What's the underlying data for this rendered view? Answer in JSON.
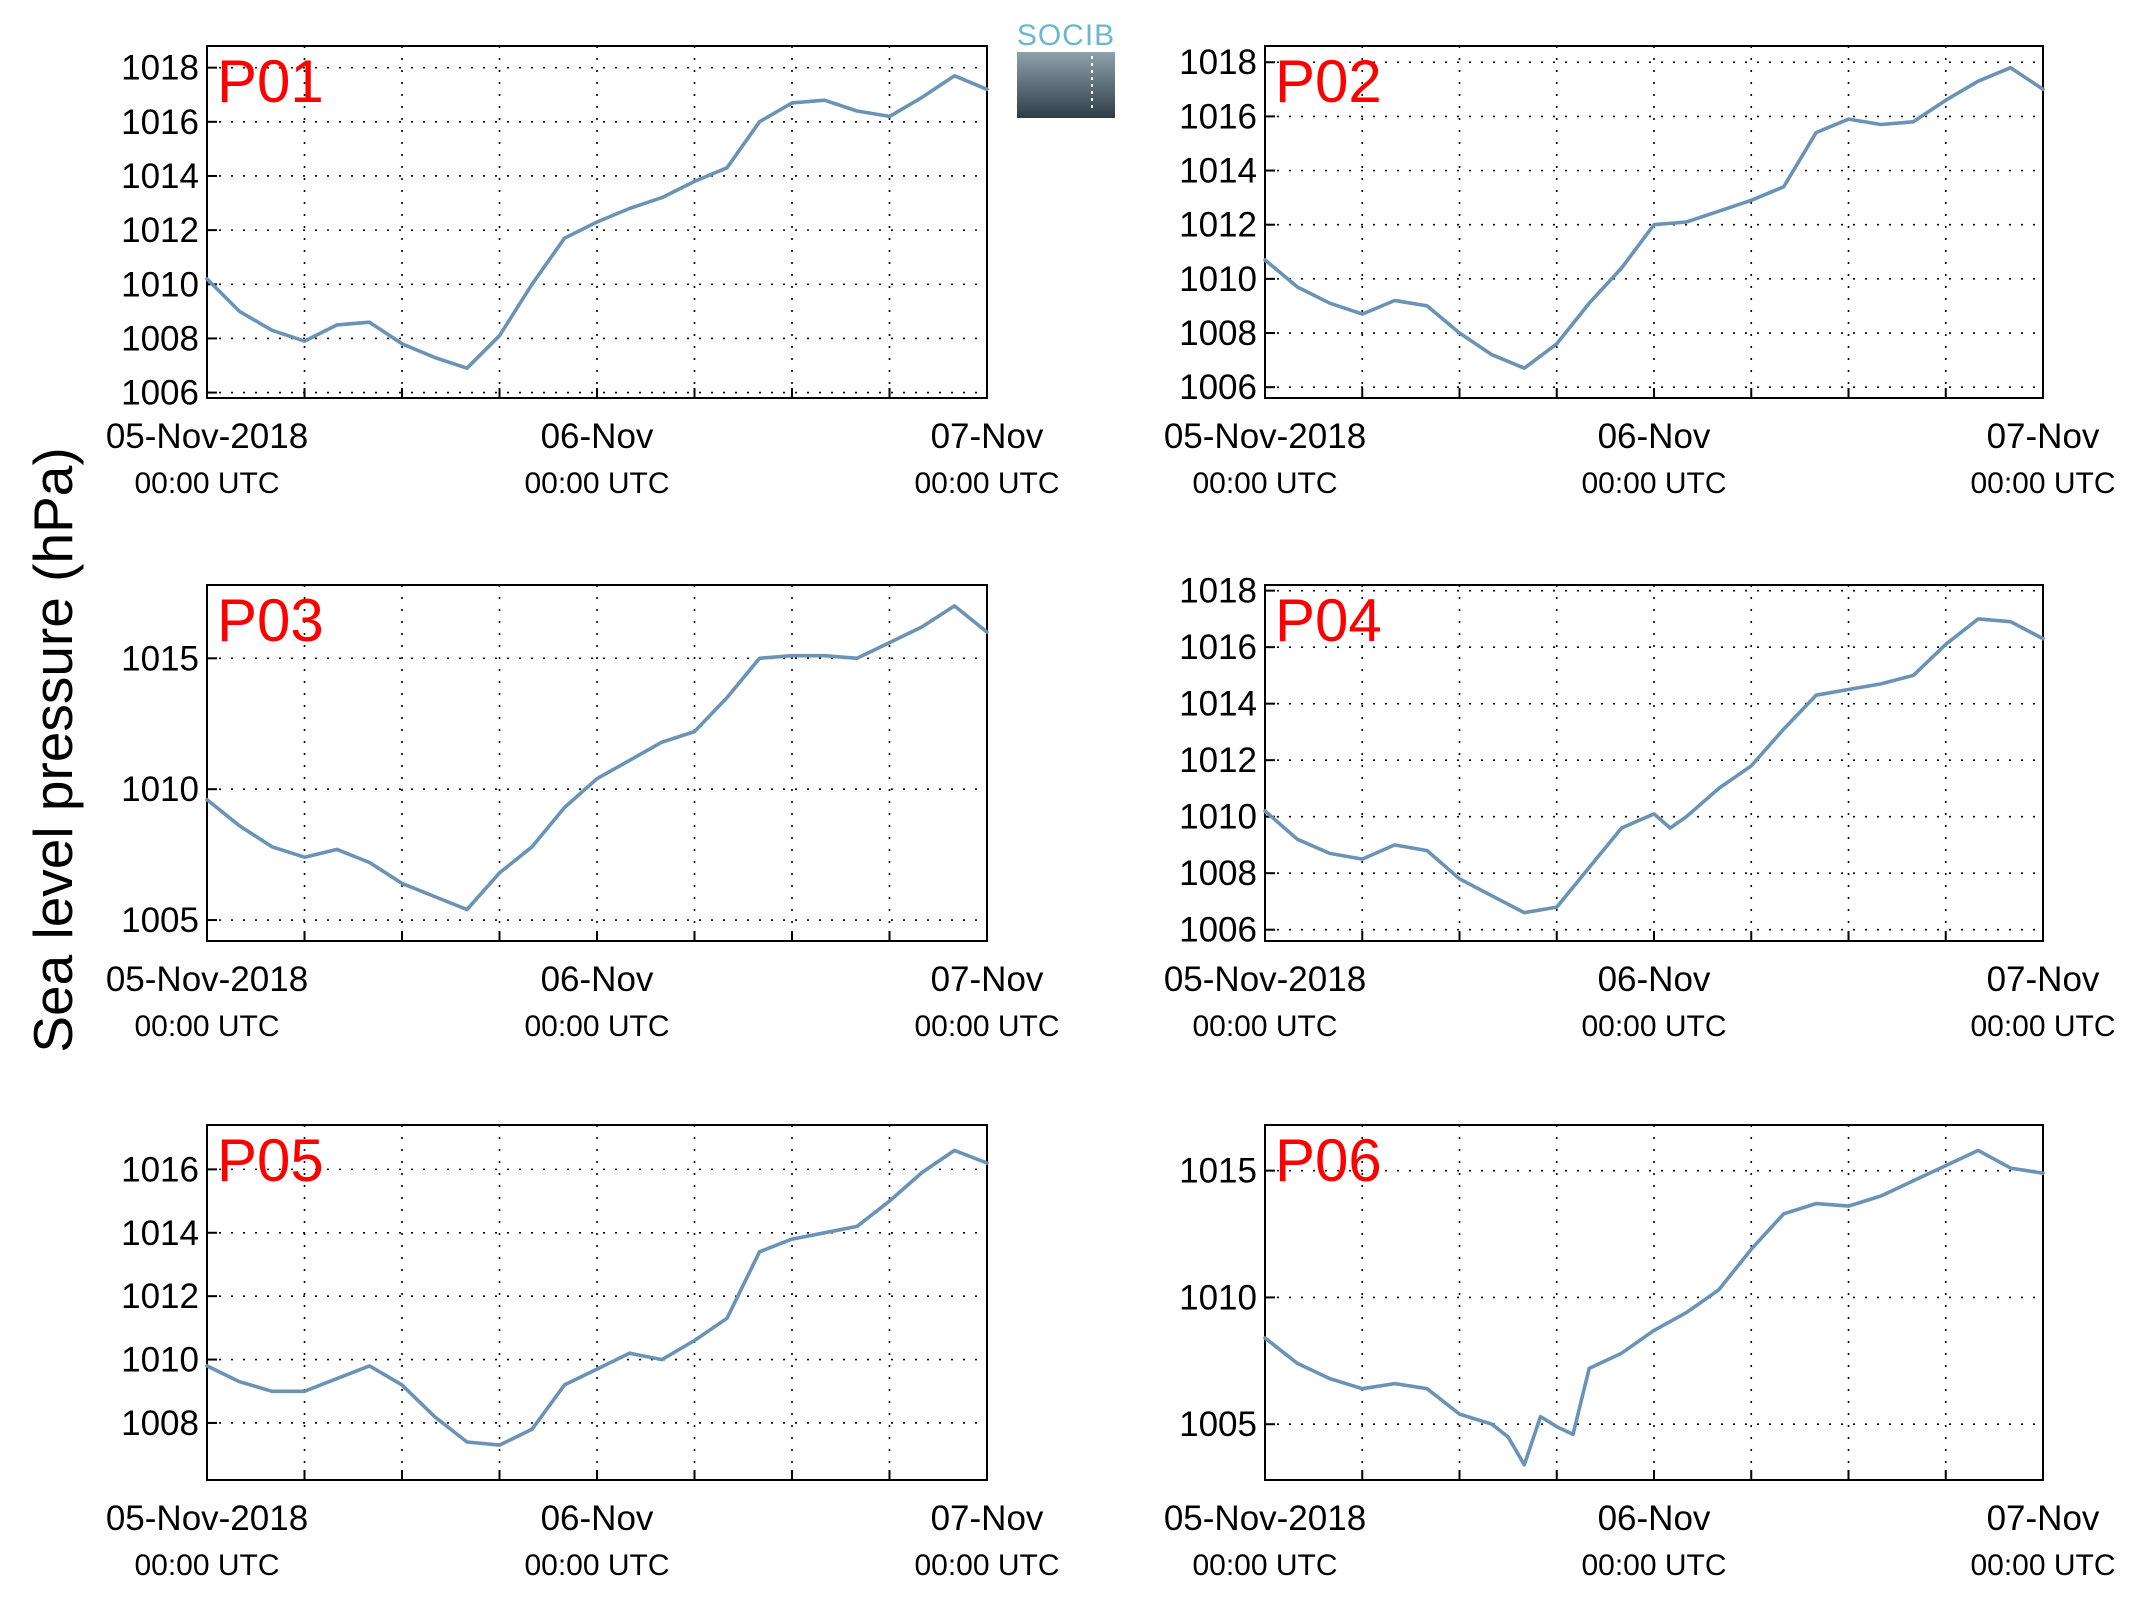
{
  "ylabel": "Sea level pressure (hPa)",
  "logo": {
    "text": "SOCIB",
    "text_color": "#6bb8cc",
    "gradient_top": "#8fa2ac",
    "gradient_bottom": "#2f3c46"
  },
  "colors": {
    "line": "#6b93b5",
    "panel_label": "#ff0000",
    "grid": "#000000"
  },
  "x_ticks": [
    {
      "main": "05-Nov-2018",
      "sub": "00:00 UTC"
    },
    {
      "main": "06-Nov",
      "sub": "00:00 UTC"
    },
    {
      "main": "07-Nov",
      "sub": "00:00 UTC"
    }
  ],
  "chart_data": [
    {
      "type": "line",
      "label": "P01",
      "xlim": [
        "2018-11-05 00:00",
        "2018-11-07 00:00"
      ],
      "ylim": [
        1005.8,
        1018.8
      ],
      "yticks": [
        1006,
        1008,
        1010,
        1012,
        1014,
        1016,
        1018
      ],
      "grid": true,
      "x": [
        "2018-11-05 00:00",
        "2018-11-05 02:00",
        "2018-11-05 04:00",
        "2018-11-05 06:00",
        "2018-11-05 08:00",
        "2018-11-05 10:00",
        "2018-11-05 12:00",
        "2018-11-05 14:00",
        "2018-11-05 16:00",
        "2018-11-05 18:00",
        "2018-11-05 20:00",
        "2018-11-05 22:00",
        "2018-11-06 00:00",
        "2018-11-06 02:00",
        "2018-11-06 04:00",
        "2018-11-06 06:00",
        "2018-11-06 08:00",
        "2018-11-06 10:00",
        "2018-11-06 12:00",
        "2018-11-06 14:00",
        "2018-11-06 16:00",
        "2018-11-06 18:00",
        "2018-11-06 20:00",
        "2018-11-06 22:00",
        "2018-11-07 00:00"
      ],
      "y": [
        1010.2,
        1009.0,
        1008.3,
        1007.9,
        1008.5,
        1008.6,
        1007.8,
        1007.3,
        1006.9,
        1008.1,
        1010.0,
        1011.7,
        1012.3,
        1012.8,
        1013.2,
        1013.8,
        1014.3,
        1016.0,
        1016.7,
        1016.8,
        1016.4,
        1016.2,
        1016.9,
        1017.7,
        1017.2
      ]
    },
    {
      "type": "line",
      "label": "P02",
      "xlim": [
        "2018-11-05 00:00",
        "2018-11-07 00:00"
      ],
      "ylim": [
        1005.6,
        1018.6
      ],
      "yticks": [
        1006,
        1008,
        1010,
        1012,
        1014,
        1016,
        1018
      ],
      "grid": true,
      "x": [
        "2018-11-05 00:00",
        "2018-11-05 02:00",
        "2018-11-05 04:00",
        "2018-11-05 06:00",
        "2018-11-05 08:00",
        "2018-11-05 10:00",
        "2018-11-05 12:00",
        "2018-11-05 14:00",
        "2018-11-05 16:00",
        "2018-11-05 18:00",
        "2018-11-05 20:00",
        "2018-11-05 22:00",
        "2018-11-06 00:00",
        "2018-11-06 02:00",
        "2018-11-06 04:00",
        "2018-11-06 06:00",
        "2018-11-06 08:00",
        "2018-11-06 10:00",
        "2018-11-06 12:00",
        "2018-11-06 14:00",
        "2018-11-06 16:00",
        "2018-11-06 18:00",
        "2018-11-06 20:00",
        "2018-11-06 22:00",
        "2018-11-07 00:00"
      ],
      "y": [
        1010.7,
        1009.7,
        1009.1,
        1008.7,
        1009.2,
        1009.0,
        1008.0,
        1007.2,
        1006.7,
        1007.6,
        1009.1,
        1010.4,
        1012.0,
        1012.1,
        1012.5,
        1012.9,
        1013.4,
        1015.4,
        1015.9,
        1015.7,
        1015.8,
        1016.6,
        1017.3,
        1017.8,
        1017.0
      ]
    },
    {
      "type": "line",
      "label": "P03",
      "xlim": [
        "2018-11-05 00:00",
        "2018-11-07 00:00"
      ],
      "ylim": [
        1004.2,
        1017.8
      ],
      "yticks": [
        1005,
        1010,
        1015
      ],
      "grid": true,
      "x": [
        "2018-11-05 00:00",
        "2018-11-05 02:00",
        "2018-11-05 04:00",
        "2018-11-05 06:00",
        "2018-11-05 08:00",
        "2018-11-05 10:00",
        "2018-11-05 12:00",
        "2018-11-05 14:00",
        "2018-11-05 16:00",
        "2018-11-05 18:00",
        "2018-11-05 20:00",
        "2018-11-05 22:00",
        "2018-11-06 00:00",
        "2018-11-06 02:00",
        "2018-11-06 04:00",
        "2018-11-06 06:00",
        "2018-11-06 08:00",
        "2018-11-06 10:00",
        "2018-11-06 12:00",
        "2018-11-06 14:00",
        "2018-11-06 16:00",
        "2018-11-06 18:00",
        "2018-11-06 20:00",
        "2018-11-06 22:00",
        "2018-11-07 00:00"
      ],
      "y": [
        1009.6,
        1008.6,
        1007.8,
        1007.4,
        1007.7,
        1007.2,
        1006.4,
        1005.9,
        1005.4,
        1006.8,
        1007.8,
        1009.3,
        1010.4,
        1011.1,
        1011.8,
        1012.2,
        1013.5,
        1015.0,
        1015.1,
        1015.1,
        1015.0,
        1015.6,
        1016.2,
        1017.0,
        1016.0
      ]
    },
    {
      "type": "line",
      "label": "P04",
      "xlim": [
        "2018-11-05 00:00",
        "2018-11-07 00:00"
      ],
      "ylim": [
        1005.6,
        1018.2
      ],
      "yticks": [
        1006,
        1008,
        1010,
        1012,
        1014,
        1016,
        1018
      ],
      "grid": true,
      "x": [
        "2018-11-05 00:00",
        "2018-11-05 02:00",
        "2018-11-05 04:00",
        "2018-11-05 06:00",
        "2018-11-05 08:00",
        "2018-11-05 10:00",
        "2018-11-05 12:00",
        "2018-11-05 14:00",
        "2018-11-05 16:00",
        "2018-11-05 18:00",
        "2018-11-05 20:00",
        "2018-11-05 22:00",
        "2018-11-06 00:00",
        "2018-11-06 01:00",
        "2018-11-06 02:00",
        "2018-11-06 04:00",
        "2018-11-06 06:00",
        "2018-11-06 08:00",
        "2018-11-06 10:00",
        "2018-11-06 12:00",
        "2018-11-06 14:00",
        "2018-11-06 16:00",
        "2018-11-06 18:00",
        "2018-11-06 20:00",
        "2018-11-06 22:00",
        "2018-11-07 00:00"
      ],
      "y": [
        1010.2,
        1009.2,
        1008.7,
        1008.5,
        1009.0,
        1008.8,
        1007.8,
        1007.2,
        1006.6,
        1006.8,
        1008.2,
        1009.6,
        1010.1,
        1009.6,
        1010.0,
        1011.0,
        1011.8,
        1013.1,
        1014.3,
        1014.5,
        1014.7,
        1015.0,
        1016.1,
        1017.0,
        1016.9,
        1016.3
      ]
    },
    {
      "type": "line",
      "label": "P05",
      "xlim": [
        "2018-11-05 00:00",
        "2018-11-07 00:00"
      ],
      "ylim": [
        1006.2,
        1017.4
      ],
      "yticks": [
        1008,
        1010,
        1012,
        1014,
        1016
      ],
      "grid": true,
      "x": [
        "2018-11-05 00:00",
        "2018-11-05 02:00",
        "2018-11-05 04:00",
        "2018-11-05 06:00",
        "2018-11-05 08:00",
        "2018-11-05 10:00",
        "2018-11-05 12:00",
        "2018-11-05 14:00",
        "2018-11-05 16:00",
        "2018-11-05 18:00",
        "2018-11-05 20:00",
        "2018-11-05 22:00",
        "2018-11-06 00:00",
        "2018-11-06 02:00",
        "2018-11-06 04:00",
        "2018-11-06 06:00",
        "2018-11-06 08:00",
        "2018-11-06 10:00",
        "2018-11-06 12:00",
        "2018-11-06 14:00",
        "2018-11-06 16:00",
        "2018-11-06 18:00",
        "2018-11-06 20:00",
        "2018-11-06 22:00",
        "2018-11-07 00:00"
      ],
      "y": [
        1009.8,
        1009.3,
        1009.0,
        1009.0,
        1009.4,
        1009.8,
        1009.2,
        1008.2,
        1007.4,
        1007.3,
        1007.8,
        1009.2,
        1009.7,
        1010.2,
        1010.0,
        1010.6,
        1011.3,
        1013.4,
        1013.8,
        1014.0,
        1014.2,
        1015.0,
        1015.9,
        1016.6,
        1016.2
      ]
    },
    {
      "type": "line",
      "label": "P06",
      "xlim": [
        "2018-11-05 00:00",
        "2018-11-07 00:00"
      ],
      "ylim": [
        1002.8,
        1016.8
      ],
      "yticks": [
        1005,
        1010,
        1015
      ],
      "grid": true,
      "x": [
        "2018-11-05 00:00",
        "2018-11-05 02:00",
        "2018-11-05 04:00",
        "2018-11-05 06:00",
        "2018-11-05 08:00",
        "2018-11-05 10:00",
        "2018-11-05 12:00",
        "2018-11-05 14:00",
        "2018-11-05 15:00",
        "2018-11-05 16:00",
        "2018-11-05 17:00",
        "2018-11-05 18:00",
        "2018-11-05 19:00",
        "2018-11-05 20:00",
        "2018-11-05 22:00",
        "2018-11-06 00:00",
        "2018-11-06 02:00",
        "2018-11-06 04:00",
        "2018-11-06 06:00",
        "2018-11-06 08:00",
        "2018-11-06 10:00",
        "2018-11-06 12:00",
        "2018-11-06 14:00",
        "2018-11-06 16:00",
        "2018-11-06 18:00",
        "2018-11-06 20:00",
        "2018-11-06 22:00",
        "2018-11-07 00:00"
      ],
      "y": [
        1008.4,
        1007.4,
        1006.8,
        1006.4,
        1006.6,
        1006.4,
        1005.4,
        1005.0,
        1004.5,
        1003.4,
        1005.3,
        1004.9,
        1004.6,
        1007.2,
        1007.8,
        1008.7,
        1009.4,
        1010.3,
        1011.9,
        1013.3,
        1013.7,
        1013.6,
        1014.0,
        1014.6,
        1015.2,
        1015.8,
        1015.1,
        1014.9
      ]
    }
  ]
}
